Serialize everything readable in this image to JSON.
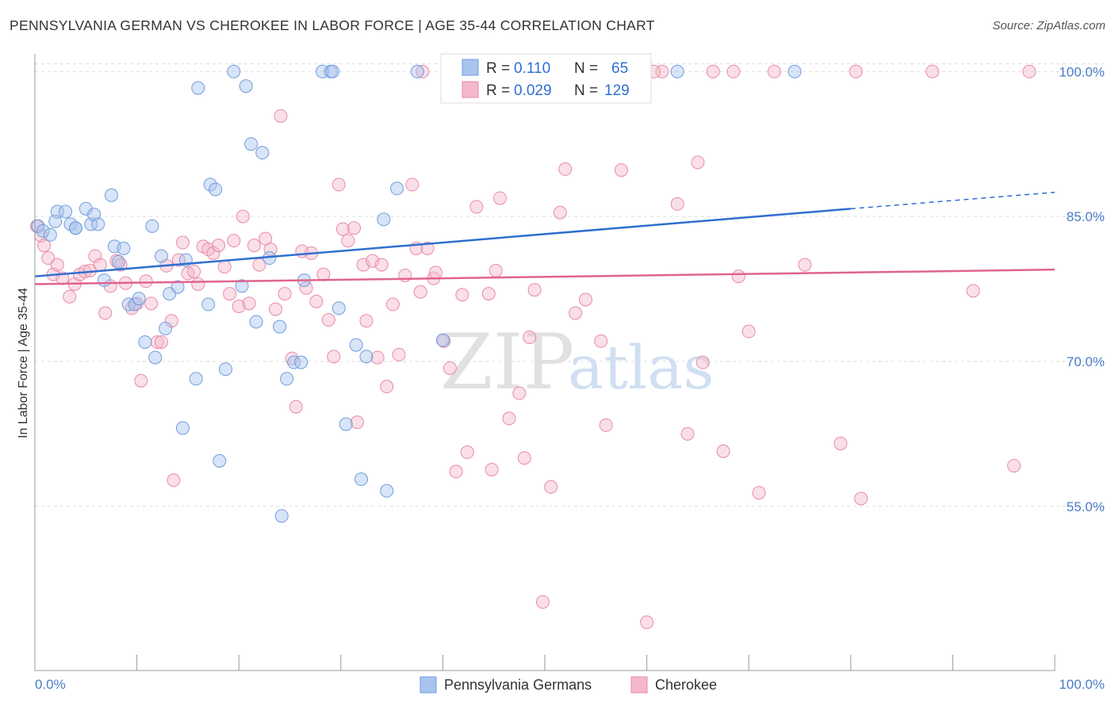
{
  "title": "PENNSYLVANIA GERMAN VS CHEROKEE IN LABOR FORCE | AGE 35-44 CORRELATION CHART",
  "source": "Source: ZipAtlas.com",
  "watermark": {
    "zip": "ZIP",
    "atlas": "atlas"
  },
  "colors": {
    "blue_fill": "#a8c4ee",
    "blue_stroke": "#6f9ddc",
    "blue_line": "#2f6fd1",
    "pink_fill": "#f5b8cb",
    "pink_stroke": "#e98aa7",
    "pink_line": "#e0648f",
    "tick_text": "#4a7cc7",
    "grid": "#dddddd"
  },
  "legend": {
    "blue": {
      "r_label": "R =",
      "r_value": "0.110",
      "n_label": "N =",
      "n_value": "65"
    },
    "pink": {
      "r_label": "R =",
      "r_value": "0.029",
      "n_label": "N =",
      "n_value": "129"
    }
  },
  "chart_data": {
    "type": "scatter",
    "title": "PENNSYLVANIA GERMAN VS CHEROKEE IN LABOR FORCE | AGE 35-44 CORRELATION CHART",
    "xlabel": "",
    "ylabel": "In Labor Force | Age 35-44",
    "xlim": [
      0,
      100
    ],
    "ylim": [
      38,
      101.5
    ],
    "x_tick_labels": [
      "0.0%",
      "100.0%"
    ],
    "y_ticks": [
      55,
      70,
      85,
      100
    ],
    "y_tick_labels": [
      "55.0%",
      "70.0%",
      "85.0%",
      "100.0%"
    ],
    "grid": true,
    "legend_position": "top-center",
    "series": [
      {
        "name": "Pennsylvania Germans",
        "color": "#a8c4ee",
        "r": 0.11,
        "n": 65,
        "trend": {
          "x": [
            0,
            80
          ],
          "y": [
            78.8,
            85.8
          ],
          "dashed_to": [
            100,
            87.5
          ]
        },
        "points": [
          [
            0.3,
            84.0
          ],
          [
            0.8,
            83.5
          ],
          [
            1.5,
            83.1
          ],
          [
            2,
            84.5
          ],
          [
            2.2,
            85.5
          ],
          [
            3,
            85.5
          ],
          [
            3.5,
            84.2
          ],
          [
            4,
            83.8
          ],
          [
            4,
            83.8
          ],
          [
            5,
            85.8
          ],
          [
            5.5,
            84.2
          ],
          [
            5.8,
            85.2
          ],
          [
            6.2,
            84.2
          ],
          [
            6.8,
            78.4
          ],
          [
            7.5,
            87.2
          ],
          [
            7.8,
            81.9
          ],
          [
            8.2,
            80.3
          ],
          [
            8.7,
            81.7
          ],
          [
            9.2,
            75.9
          ],
          [
            9.8,
            75.9
          ],
          [
            10.2,
            76.5
          ],
          [
            10.8,
            72.0
          ],
          [
            11.5,
            84.0
          ],
          [
            11.8,
            70.4
          ],
          [
            12.4,
            80.9
          ],
          [
            12.8,
            73.4
          ],
          [
            13.2,
            77.0
          ],
          [
            14,
            77.7
          ],
          [
            14.5,
            63.1
          ],
          [
            14.8,
            80.5
          ],
          [
            15.8,
            68.2
          ],
          [
            16,
            98.3
          ],
          [
            17,
            75.9
          ],
          [
            17.2,
            88.3
          ],
          [
            17.7,
            87.8
          ],
          [
            18.1,
            59.7
          ],
          [
            18.7,
            69.2
          ],
          [
            19.5,
            100
          ],
          [
            20.3,
            77.8
          ],
          [
            20.7,
            98.5
          ],
          [
            21.2,
            92.5
          ],
          [
            21.7,
            74.1
          ],
          [
            22.3,
            91.6
          ],
          [
            23,
            80.7
          ],
          [
            24,
            73.6
          ],
          [
            24.7,
            68.2
          ],
          [
            25.4,
            69.9
          ],
          [
            26.1,
            69.9
          ],
          [
            26.4,
            78.4
          ],
          [
            28.2,
            100
          ],
          [
            29,
            100
          ],
          [
            29.2,
            100
          ],
          [
            29.8,
            75.5
          ],
          [
            30.5,
            63.5
          ],
          [
            31.5,
            71.7
          ],
          [
            32,
            57.8
          ],
          [
            32.5,
            70.5
          ],
          [
            34.2,
            84.7
          ],
          [
            34.5,
            56.6
          ],
          [
            35.5,
            87.9
          ],
          [
            37.5,
            100
          ],
          [
            47.5,
            100
          ],
          [
            63,
            100
          ],
          [
            74.5,
            100
          ],
          [
            24.2,
            54.0
          ],
          [
            40,
            72.2
          ]
        ]
      },
      {
        "name": "Cherokee",
        "color": "#f5b8cb",
        "r": 0.029,
        "n": 129,
        "trend": {
          "x": [
            0,
            100
          ],
          "y": [
            78.0,
            79.5
          ]
        },
        "points": [
          [
            0.2,
            84.0
          ],
          [
            0.6,
            83.0
          ],
          [
            0.9,
            82.0
          ],
          [
            1.3,
            80.7
          ],
          [
            1.8,
            79.0
          ],
          [
            2.2,
            80.0
          ],
          [
            2.7,
            78.6
          ],
          [
            3.4,
            76.7
          ],
          [
            3.9,
            78.0
          ],
          [
            4.4,
            79.0
          ],
          [
            4.9,
            79.3
          ],
          [
            5.4,
            79.4
          ],
          [
            5.9,
            80.9
          ],
          [
            6.4,
            80.0
          ],
          [
            6.9,
            75.0
          ],
          [
            7.4,
            77.8
          ],
          [
            8,
            80.4
          ],
          [
            8.4,
            80.0
          ],
          [
            8.9,
            78.1
          ],
          [
            9.5,
            75.5
          ],
          [
            10,
            76.0
          ],
          [
            10.4,
            68.0
          ],
          [
            10.9,
            78.3
          ],
          [
            11.4,
            76.0
          ],
          [
            12,
            72.0
          ],
          [
            12.4,
            72.0
          ],
          [
            12.9,
            79.9
          ],
          [
            13.4,
            74.2
          ],
          [
            13.6,
            57.7
          ],
          [
            14.1,
            80.5
          ],
          [
            14.5,
            82.3
          ],
          [
            15,
            79.1
          ],
          [
            15.6,
            79.3
          ],
          [
            16,
            78.0
          ],
          [
            16.5,
            81.9
          ],
          [
            17,
            81.6
          ],
          [
            17.5,
            81.2
          ],
          [
            18,
            82.0
          ],
          [
            18.6,
            79.8
          ],
          [
            19.1,
            77.0
          ],
          [
            19.5,
            82.5
          ],
          [
            20,
            75.7
          ],
          [
            20.4,
            85.0
          ],
          [
            21,
            76.0
          ],
          [
            21.5,
            82.0
          ],
          [
            22,
            80.0
          ],
          [
            22.6,
            82.7
          ],
          [
            23.1,
            81.6
          ],
          [
            23.6,
            75.4
          ],
          [
            24.1,
            95.4
          ],
          [
            24.5,
            77.0
          ],
          [
            25.2,
            70.3
          ],
          [
            25.6,
            65.3
          ],
          [
            26.2,
            81.4
          ],
          [
            26.6,
            77.6
          ],
          [
            27.1,
            81.2
          ],
          [
            27.6,
            76.2
          ],
          [
            28.3,
            79.0
          ],
          [
            28.8,
            74.3
          ],
          [
            29.3,
            70.5
          ],
          [
            29.8,
            88.3
          ],
          [
            30.2,
            83.7
          ],
          [
            30.7,
            82.5
          ],
          [
            31.3,
            83.8
          ],
          [
            31.6,
            63.7
          ],
          [
            32.2,
            80.0
          ],
          [
            32.5,
            74.2
          ],
          [
            33.1,
            80.4
          ],
          [
            33.6,
            70.4
          ],
          [
            34,
            80.0
          ],
          [
            34.5,
            67.4
          ],
          [
            35.1,
            75.9
          ],
          [
            35.7,
            70.7
          ],
          [
            36.3,
            78.9
          ],
          [
            37,
            88.3
          ],
          [
            37.4,
            81.7
          ],
          [
            37.8,
            77.2
          ],
          [
            38.5,
            81.7
          ],
          [
            39.1,
            78.6
          ],
          [
            39.3,
            79.2
          ],
          [
            40.1,
            72.1
          ],
          [
            40.7,
            69.3
          ],
          [
            41.3,
            58.6
          ],
          [
            41.9,
            76.9
          ],
          [
            42.4,
            60.6
          ],
          [
            43.3,
            86.0
          ],
          [
            44.5,
            77.0
          ],
          [
            44.8,
            58.8
          ],
          [
            45.2,
            79.4
          ],
          [
            45.6,
            86.9
          ],
          [
            46.5,
            64.1
          ],
          [
            47.5,
            66.7
          ],
          [
            48,
            60.0
          ],
          [
            49,
            77.4
          ],
          [
            49.8,
            45.1
          ],
          [
            50.6,
            57.0
          ],
          [
            51.5,
            85.4
          ],
          [
            52,
            89.9
          ],
          [
            53,
            75.0
          ],
          [
            54,
            76.4
          ],
          [
            55.5,
            72.1
          ],
          [
            56,
            63.4
          ],
          [
            57.5,
            89.8
          ],
          [
            59.5,
            100
          ],
          [
            60,
            43.0
          ],
          [
            61.5,
            100
          ],
          [
            63,
            86.3
          ],
          [
            64,
            62.5
          ],
          [
            65,
            90.6
          ],
          [
            65.5,
            69.9
          ],
          [
            66.5,
            100
          ],
          [
            67.5,
            60.7
          ],
          [
            68.5,
            100
          ],
          [
            69,
            78.8
          ],
          [
            70,
            73.1
          ],
          [
            71,
            56.4
          ],
          [
            72.5,
            100
          ],
          [
            75.5,
            80.0
          ],
          [
            79,
            61.5
          ],
          [
            80.5,
            100
          ],
          [
            81,
            55.8
          ],
          [
            88,
            100
          ],
          [
            92,
            77.3
          ],
          [
            96,
            59.2
          ],
          [
            97.5,
            100
          ],
          [
            48.5,
            72.5
          ],
          [
            38,
            100
          ],
          [
            60.7,
            100
          ],
          [
            51.5,
            100
          ]
        ]
      }
    ]
  },
  "bottom_legend": [
    {
      "label": "Pennsylvania Germans"
    },
    {
      "label": "Cherokee"
    }
  ]
}
